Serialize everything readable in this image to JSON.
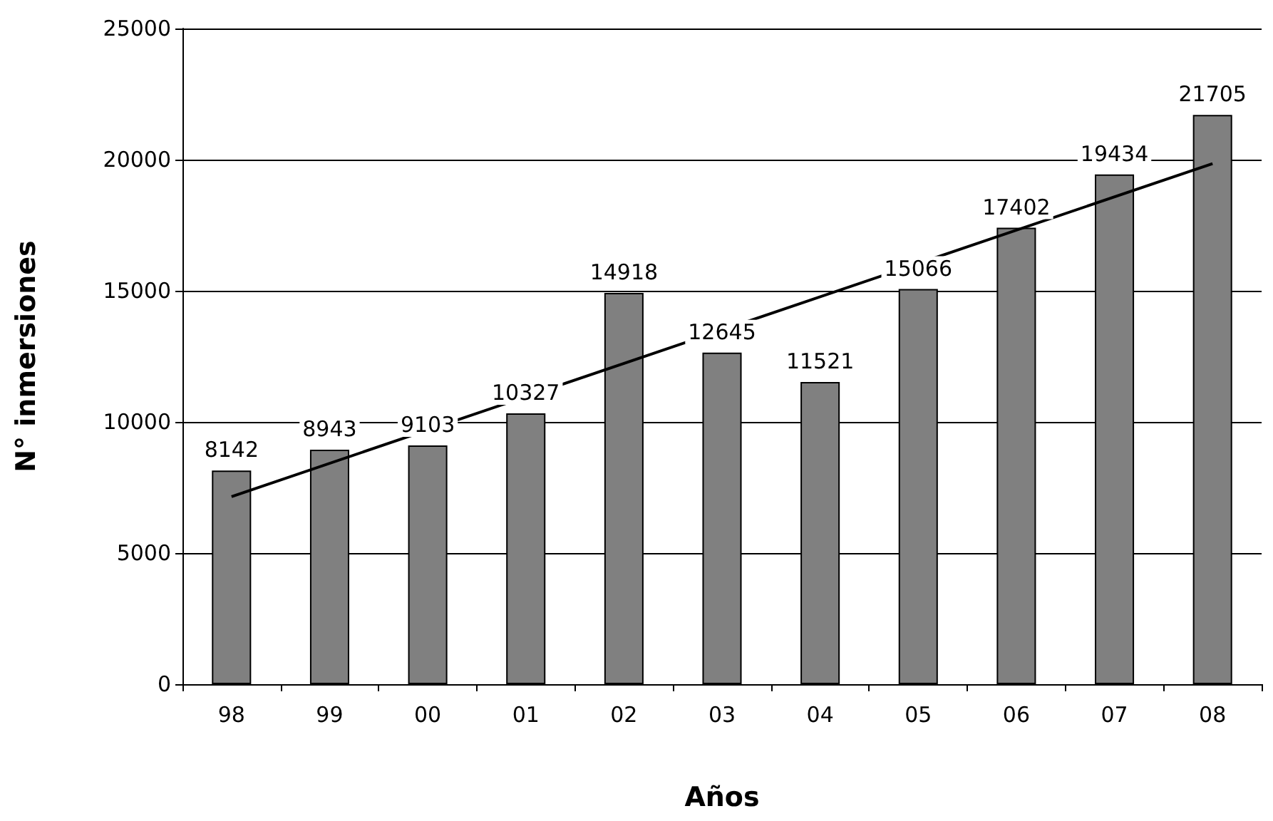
{
  "chart_data": {
    "type": "bar",
    "xlabel": "Años",
    "ylabel": "N° inmersiones",
    "categories": [
      "98",
      "99",
      "00",
      "01",
      "02",
      "03",
      "04",
      "05",
      "06",
      "07",
      "08"
    ],
    "series": [
      {
        "color": "#808080",
        "values": [
          8142,
          8943,
          9103,
          10327,
          14918,
          12645,
          11521,
          15066,
          17402,
          19434,
          21705
        ],
        "value_labels": [
          "8142",
          "8943",
          "9103",
          "10327",
          "14918",
          "12645",
          "11521",
          "15066",
          "17402",
          "19434",
          "21705"
        ]
      },
      {
        "type": "line",
        "color": "#000000",
        "x": [
          "98",
          "08"
        ],
        "values": [
          7150,
          19850
        ]
      }
    ],
    "ylim": [
      0,
      25000
    ],
    "yticks": [
      0,
      5000,
      10000,
      15000,
      20000,
      25000
    ],
    "grid": "y",
    "marker": "none",
    "line_style": "solid"
  }
}
